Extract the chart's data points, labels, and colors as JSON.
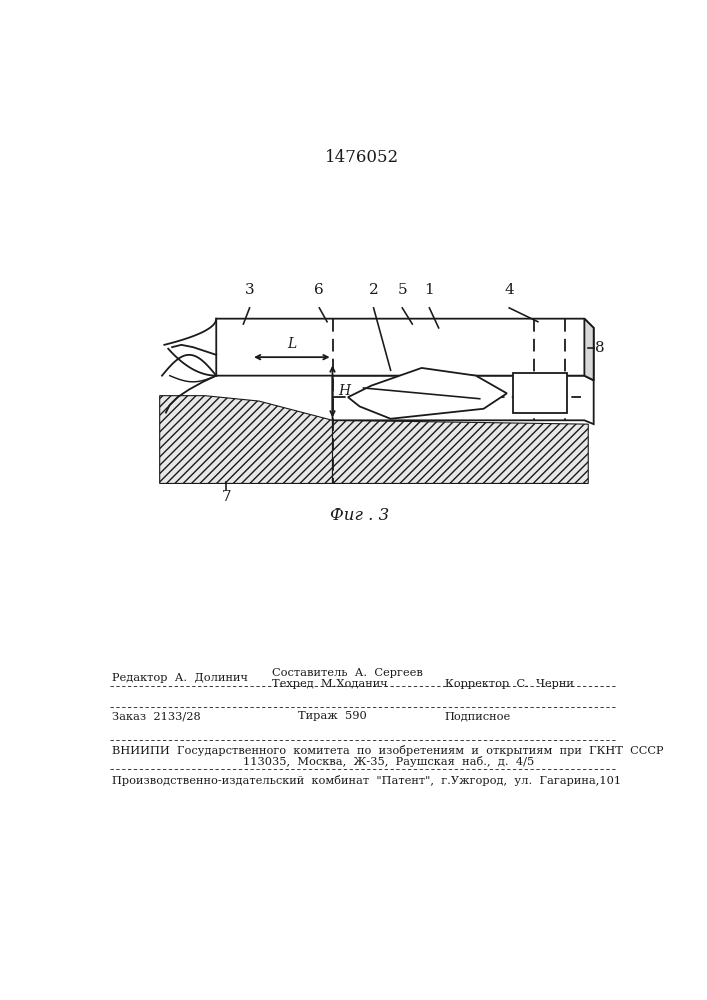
{
  "title": "1476052",
  "fig_caption": "Фиг . 3",
  "line_color": "#1a1a1a",
  "label_3": "3",
  "label_6": "6",
  "label_2": "2",
  "label_5": "5",
  "label_1": "1",
  "label_4": "4",
  "label_7": "7",
  "label_8": "8",
  "label_L": "L",
  "label_H": "H",
  "footer_line1_left": "Редактор  А.  Долинич",
  "footer_line1_center": "Составитель  А.  Сергеев",
  "footer_line2_center": "Техред  М.Ходанич",
  "footer_line2_right": "Корректор  С.  Черни",
  "footer_zakaz": "Заказ  2133/28",
  "footer_tirazh": "Тираж  590",
  "footer_podpisnoe": "Подписное",
  "footer_vniipи": "ВНИИПИ  Государственного  комитета  по  изобретениям  и  открытиям  при  ГКНТ  СССР",
  "footer_address": "113035,  Москва,  Ж-35,  Раушская  наб.,  д.  4/5",
  "footer_proizv": "Производственно-издательский  комбинат  \"Патент\",  г.Ужгород,  ул.  Гагарина,101"
}
